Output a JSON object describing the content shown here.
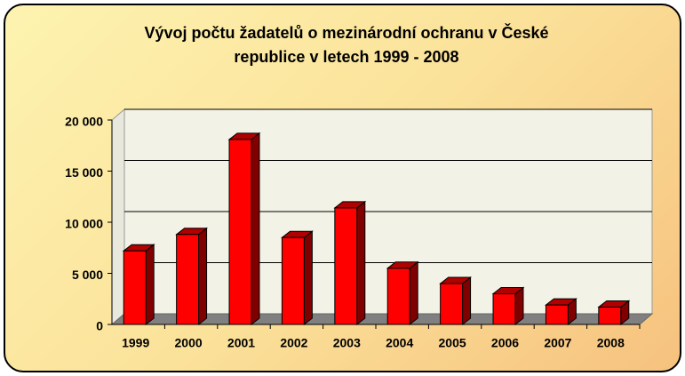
{
  "chart_data": {
    "type": "bar",
    "title": "Vývoj počtu žadatelů o mezinárodní ochranu v České republice v letech 1999 - 2008",
    "categories": [
      "1999",
      "2000",
      "2001",
      "2002",
      "2003",
      "2004",
      "2005",
      "2006",
      "2007",
      "2008"
    ],
    "values": [
      7200,
      8800,
      18100,
      8500,
      11400,
      5500,
      4000,
      3000,
      1900,
      1700
    ],
    "color": "#ff0000",
    "ylim": [
      0,
      20000
    ],
    "yticks": [
      0,
      {
        "value": 5000,
        "label": "5 000"
      },
      {
        "value": 10000,
        "label": "10 000"
      },
      {
        "value": 15000,
        "label": "15 000"
      },
      {
        "value": 20000,
        "label": "20 000"
      }
    ],
    "grid": true
  }
}
